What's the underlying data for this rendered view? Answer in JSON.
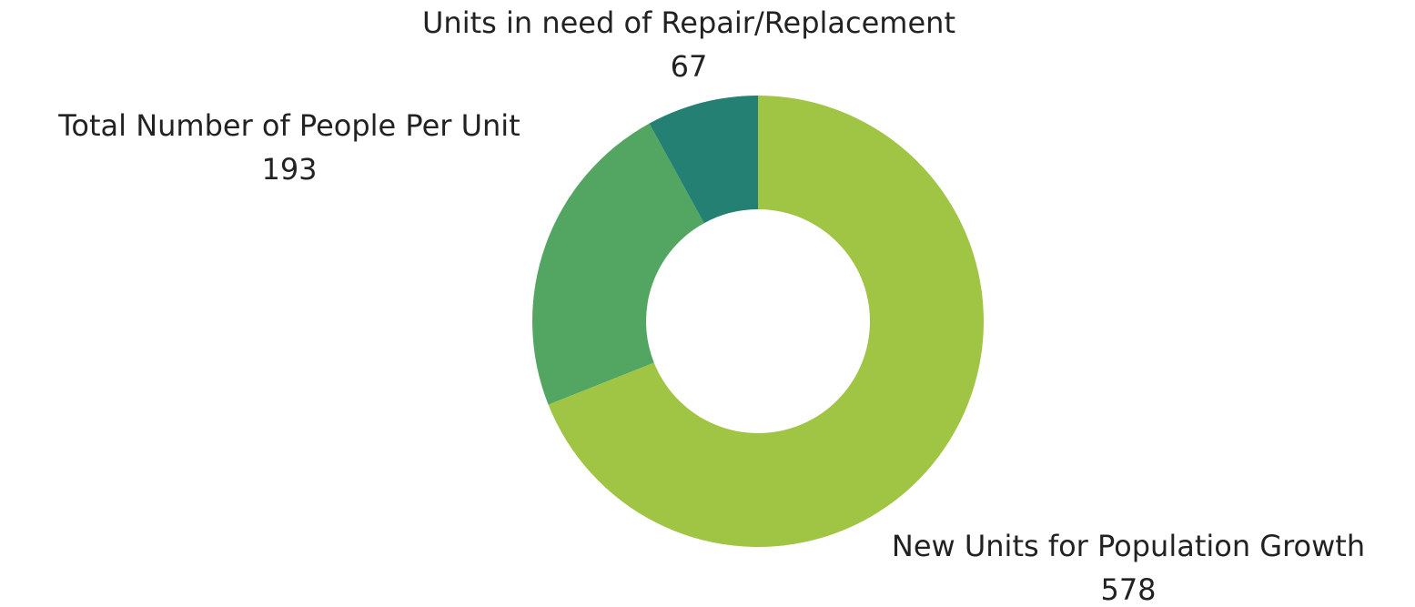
{
  "chart_data": {
    "type": "donut",
    "categories": [
      "New Units for Population Growth",
      "Total Number of People Per Unit",
      "Units in need of Repair/Replacement"
    ],
    "values": [
      578,
      193,
      67
    ],
    "colors": [
      "#a0c545",
      "#52a662",
      "#238073"
    ]
  }
}
